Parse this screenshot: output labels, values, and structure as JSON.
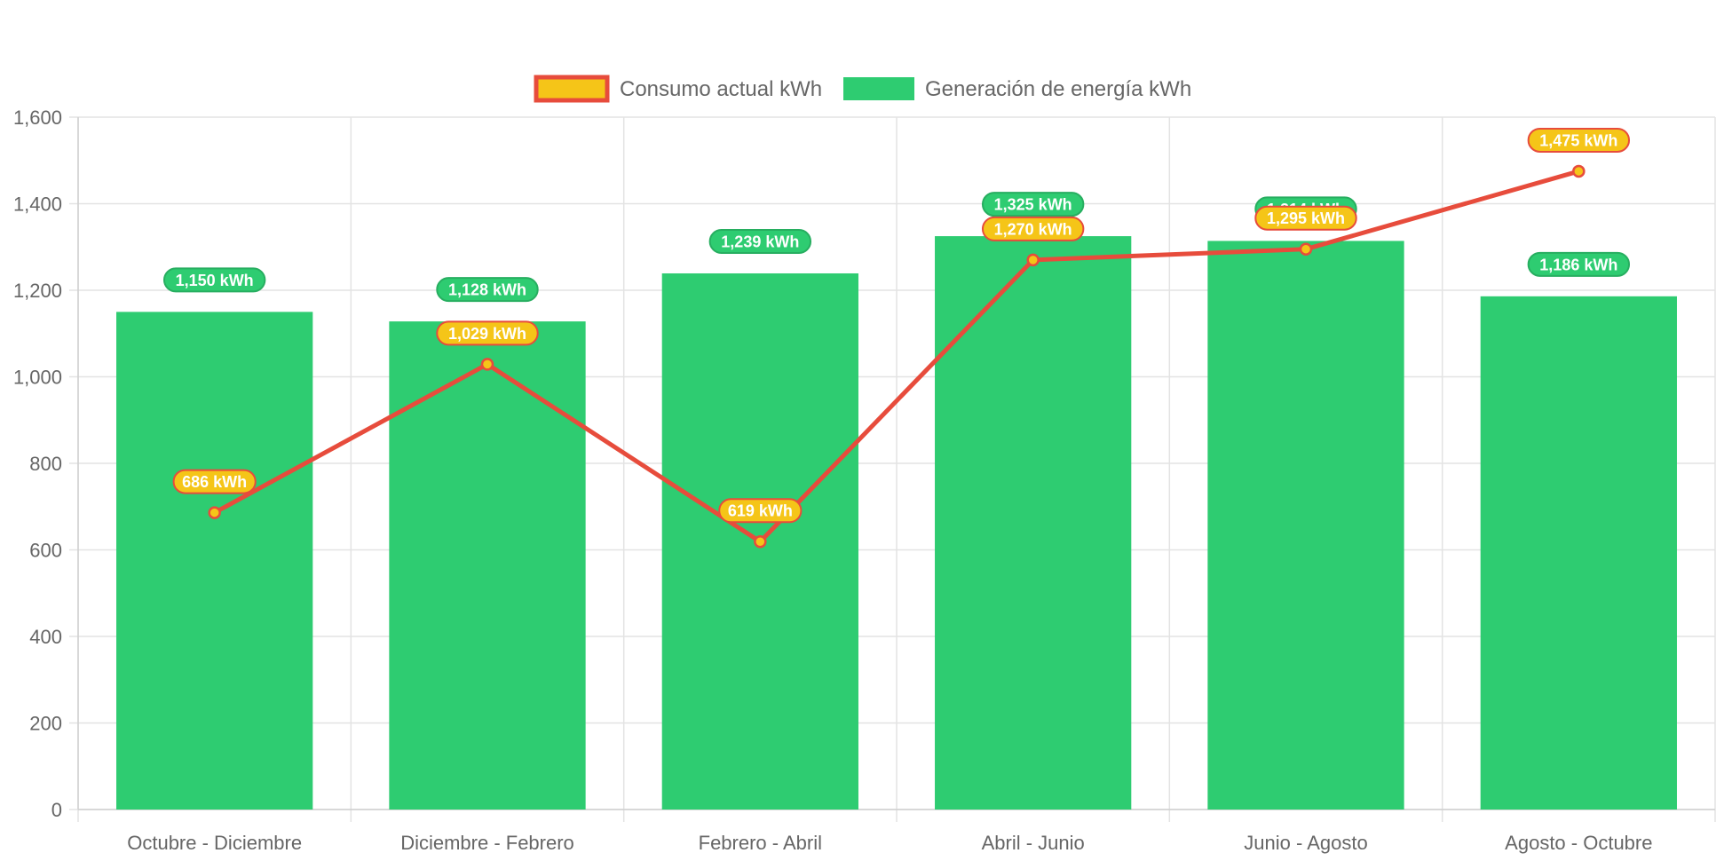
{
  "chart_data": {
    "type": "bar",
    "categories": [
      "Octubre - Diciembre",
      "Diciembre - Febrero",
      "Febrero - Abril",
      "Abril - Junio",
      "Junio - Agosto",
      "Agosto - Octubre"
    ],
    "ylim": [
      0,
      1600
    ],
    "yticks": [
      0,
      200,
      400,
      600,
      800,
      1000,
      1200,
      1400,
      1600
    ],
    "ytick_labels": [
      "0",
      "200",
      "400",
      "600",
      "800",
      "1,000",
      "1,200",
      "1,400",
      "1,600"
    ],
    "grid": true,
    "legend_position": "top-center",
    "series": [
      {
        "name": "Consumo actual kWh",
        "type": "line",
        "values": [
          686,
          1029,
          619,
          1270,
          1295,
          1475
        ],
        "labels": [
          "686 kWh",
          "1,029 kWh",
          "619 kWh",
          "1,270 kWh",
          "1,295 kWh",
          "1,475 kWh"
        ],
        "line_color": "#e74c3c",
        "fill_color": "#f5c518"
      },
      {
        "name": "Generación de energía kWh",
        "type": "bar",
        "values": [
          1150,
          1128,
          1239,
          1325,
          1314,
          1186
        ],
        "labels": [
          "1,150 kWh",
          "1,128 kWh",
          "1,239 kWh",
          "1,325 kWh",
          "1,314 kWh",
          "1,186 kWh"
        ],
        "color": "#2ecc71"
      }
    ]
  }
}
